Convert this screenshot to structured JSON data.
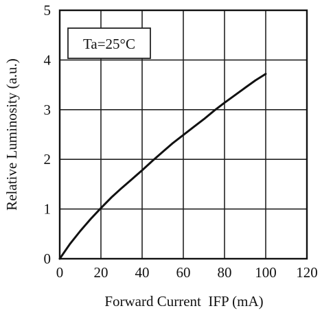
{
  "chart_data": {
    "type": "line",
    "xlabel": "Forward Current  IFP (mA)",
    "ylabel": "Relative Luminosity (a.u.)",
    "annotation": "Ta=25°C",
    "xlim": [
      0,
      120
    ],
    "ylim": [
      0,
      5
    ],
    "x_ticks": [
      0,
      20,
      40,
      60,
      80,
      100,
      120
    ],
    "y_ticks": [
      0,
      1,
      2,
      3,
      4,
      5
    ],
    "grid": true,
    "series": [
      {
        "x": [
          0,
          5,
          10,
          15,
          20,
          25,
          30,
          35,
          40,
          45,
          50,
          55,
          60,
          65,
          70,
          75,
          80,
          85,
          90,
          95,
          100
        ],
        "y": [
          0,
          0.3,
          0.56,
          0.8,
          1.02,
          1.23,
          1.42,
          1.6,
          1.78,
          1.97,
          2.15,
          2.33,
          2.49,
          2.65,
          2.81,
          2.98,
          3.14,
          3.29,
          3.44,
          3.59,
          3.72
        ]
      }
    ]
  }
}
